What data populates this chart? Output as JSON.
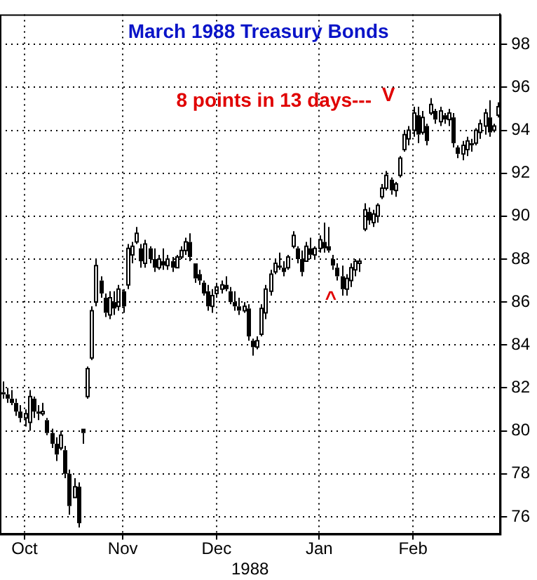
{
  "chart_data": {
    "type": "candlestick",
    "title": "March 1988 Treasury Bonds",
    "color": "#000000",
    "categories": [
      null,
      null,
      null,
      null,
      null,
      "Oct",
      null,
      null,
      null,
      null,
      null,
      null,
      null,
      null,
      null,
      null,
      null,
      null,
      null,
      null,
      null,
      null,
      null,
      null,
      null,
      null,
      null,
      "Nov",
      null,
      null,
      null,
      null,
      null,
      null,
      null,
      null,
      null,
      null,
      null,
      null,
      null,
      null,
      null,
      null,
      null,
      null,
      null,
      null,
      "Dec",
      null,
      null,
      null,
      null,
      null,
      null,
      null,
      null,
      null,
      null,
      null,
      null,
      null,
      null,
      null,
      null,
      null,
      null,
      null,
      null,
      null,
      null,
      "Jan",
      null,
      null,
      null,
      null,
      null,
      null,
      null,
      null,
      null,
      null,
      null,
      null,
      null,
      null,
      null,
      null,
      null,
      null,
      null,
      null,
      "Feb",
      null,
      null,
      null,
      null,
      null,
      null,
      null,
      null,
      null,
      null,
      null,
      null,
      null,
      null,
      null,
      null,
      null,
      null,
      null
    ],
    "ohlc": [
      [
        81.8,
        82.3,
        81.5,
        81.7
      ],
      [
        81.7,
        82.0,
        81.3,
        81.5
      ],
      [
        81.5,
        81.9,
        81.2,
        81.3
      ],
      [
        81.3,
        81.5,
        80.7,
        80.9
      ],
      [
        80.9,
        81.2,
        80.4,
        80.6
      ],
      [
        80.6,
        81.0,
        80.2,
        80.8
      ],
      [
        80.4,
        81.9,
        80.0,
        81.6
      ],
      [
        81.5,
        81.6,
        80.6,
        80.9
      ],
      [
        80.9,
        81.2,
        80.5,
        80.8
      ],
      [
        80.8,
        81.3,
        80.7,
        80.9
      ],
      [
        80.5,
        80.6,
        79.8,
        79.9
      ],
      [
        79.9,
        80.1,
        79.2,
        79.4
      ],
      [
        79.4,
        79.7,
        78.6,
        78.9
      ],
      [
        79.2,
        80.0,
        79.1,
        79.8
      ],
      [
        79.1,
        79.3,
        77.8,
        78.0
      ],
      [
        78.0,
        78.2,
        76.1,
        76.5
      ],
      [
        76.9,
        77.8,
        76.9,
        77.4
      ],
      [
        77.4,
        77.6,
        75.5,
        75.7
      ],
      [
        80.1,
        80.1,
        79.4,
        79.9
      ],
      [
        81.6,
        83.0,
        81.5,
        82.9
      ],
      [
        83.4,
        85.8,
        83.3,
        85.6
      ],
      [
        86.0,
        88.0,
        85.8,
        87.7
      ],
      [
        87.0,
        87.2,
        86.2,
        86.4
      ],
      [
        86.2,
        86.4,
        85.3,
        85.5
      ],
      [
        85.4,
        86.5,
        85.2,
        86.2
      ],
      [
        86.0,
        86.5,
        85.4,
        85.7
      ],
      [
        85.8,
        86.8,
        85.6,
        86.6
      ],
      [
        86.5,
        86.6,
        85.5,
        85.8
      ],
      [
        86.8,
        88.7,
        86.6,
        88.5
      ],
      [
        88.2,
        88.8,
        87.8,
        88.6
      ],
      [
        88.8,
        89.5,
        88.7,
        89.2
      ],
      [
        88.5,
        88.7,
        87.6,
        87.9
      ],
      [
        87.8,
        88.9,
        87.6,
        88.7
      ],
      [
        88.5,
        88.6,
        87.8,
        88.0
      ],
      [
        88.0,
        88.5,
        87.4,
        87.6
      ],
      [
        87.6,
        88.2,
        87.5,
        88.0
      ],
      [
        87.9,
        88.5,
        87.5,
        87.7
      ],
      [
        87.7,
        88.2,
        87.5,
        88.0
      ],
      [
        87.9,
        88.1,
        87.4,
        87.6
      ],
      [
        87.6,
        88.2,
        87.6,
        88.1
      ],
      [
        88.1,
        88.6,
        88.0,
        88.4
      ],
      [
        88.4,
        89.0,
        88.2,
        88.8
      ],
      [
        88.8,
        89.2,
        87.9,
        88.1
      ],
      [
        87.8,
        87.8,
        86.9,
        87.1
      ],
      [
        87.3,
        87.5,
        86.8,
        87.0
      ],
      [
        86.9,
        87.0,
        86.3,
        86.4
      ],
      [
        86.5,
        86.8,
        85.6,
        85.8
      ],
      [
        85.8,
        86.6,
        85.5,
        86.3
      ],
      [
        86.4,
        86.9,
        86.2,
        86.7
      ],
      [
        86.6,
        87.0,
        86.4,
        86.8
      ],
      [
        86.8,
        87.2,
        86.5,
        86.6
      ],
      [
        86.5,
        86.7,
        85.9,
        86.0
      ],
      [
        86.0,
        86.5,
        85.6,
        85.8
      ],
      [
        85.8,
        86.2,
        85.4,
        85.6
      ],
      [
        85.6,
        86.0,
        85.5,
        85.8
      ],
      [
        85.7,
        85.9,
        84.2,
        84.4
      ],
      [
        84.2,
        84.3,
        83.5,
        83.9
      ],
      [
        83.9,
        84.4,
        83.8,
        84.2
      ],
      [
        84.5,
        85.9,
        84.4,
        85.7
      ],
      [
        85.5,
        86.8,
        85.2,
        86.6
      ],
      [
        86.5,
        87.5,
        86.3,
        87.3
      ],
      [
        87.4,
        88.0,
        87.3,
        87.8
      ],
      [
        87.7,
        88.3,
        87.5,
        87.6
      ],
      [
        87.6,
        87.9,
        87.2,
        87.4
      ],
      [
        87.6,
        88.2,
        87.5,
        88.1
      ],
      [
        88.6,
        89.3,
        88.5,
        89.1
      ],
      [
        88.5,
        88.6,
        87.8,
        88.0
      ],
      [
        88.0,
        88.4,
        87.2,
        87.4
      ],
      [
        87.9,
        88.8,
        87.9,
        88.6
      ],
      [
        88.5,
        89.0,
        88.0,
        88.2
      ],
      [
        88.2,
        88.6,
        88.0,
        88.5
      ],
      [
        88.5,
        89.1,
        88.3,
        88.9
      ],
      [
        88.8,
        89.7,
        88.3,
        88.5
      ],
      [
        88.6,
        89.5,
        88.3,
        88.4
      ],
      [
        88.0,
        88.2,
        87.5,
        87.7
      ],
      [
        87.6,
        87.8,
        87.0,
        87.2
      ],
      [
        87.2,
        87.7,
        86.3,
        86.6
      ],
      [
        86.6,
        87.3,
        86.3,
        87.1
      ],
      [
        87.0,
        87.8,
        86.7,
        87.6
      ],
      [
        87.5,
        88.0,
        87.2,
        87.9
      ],
      [
        87.8,
        88.0,
        87.4,
        87.9
      ],
      [
        89.4,
        90.6,
        89.3,
        90.3
      ],
      [
        90.2,
        90.4,
        89.6,
        89.8
      ],
      [
        89.7,
        90.3,
        89.5,
        90.1
      ],
      [
        90.0,
        90.6,
        89.7,
        90.5
      ],
      [
        90.9,
        91.5,
        90.8,
        91.3
      ],
      [
        91.3,
        92.1,
        91.2,
        91.9
      ],
      [
        91.7,
        91.8,
        91.0,
        91.2
      ],
      [
        91.2,
        91.6,
        90.9,
        91.5
      ],
      [
        91.9,
        92.8,
        91.8,
        92.7
      ],
      [
        93.1,
        94.0,
        93.0,
        93.8
      ],
      [
        93.6,
        94.2,
        93.3,
        94.0
      ],
      [
        94.0,
        95.1,
        93.7,
        94.8
      ],
      [
        94.7,
        95.1,
        93.4,
        93.8
      ],
      [
        93.9,
        94.9,
        93.8,
        94.6
      ],
      [
        94.2,
        94.3,
        93.3,
        93.5
      ],
      [
        94.8,
        95.5,
        94.7,
        95.2
      ],
      [
        94.9,
        95.0,
        94.3,
        94.5
      ],
      [
        94.4,
        95.1,
        94.2,
        94.9
      ],
      [
        94.7,
        94.8,
        94.3,
        94.5
      ],
      [
        94.5,
        95.0,
        94.2,
        94.8
      ],
      [
        94.6,
        94.8,
        93.2,
        93.4
      ],
      [
        93.2,
        93.3,
        92.7,
        92.9
      ],
      [
        92.9,
        93.5,
        92.6,
        93.3
      ],
      [
        93.1,
        93.7,
        92.8,
        93.5
      ],
      [
        93.4,
        93.6,
        93.0,
        93.3
      ],
      [
        93.4,
        94.1,
        93.3,
        94.0
      ],
      [
        93.9,
        94.5,
        93.6,
        94.3
      ],
      [
        94.2,
        95.0,
        93.8,
        94.8
      ],
      [
        94.6,
        95.4,
        93.7,
        93.9
      ],
      [
        94.0,
        94.3,
        93.9,
        94.2
      ],
      [
        94.7,
        95.3,
        94.6,
        95.1
      ]
    ],
    "ylim": [
      75.2,
      99.4
    ],
    "yticks": [
      76,
      78,
      80,
      82,
      84,
      86,
      88,
      90,
      92,
      94,
      96,
      98
    ],
    "grid": true,
    "xlabel": "1988",
    "annotations": [
      "8 points in 13 days---",
      "V",
      "^"
    ]
  }
}
